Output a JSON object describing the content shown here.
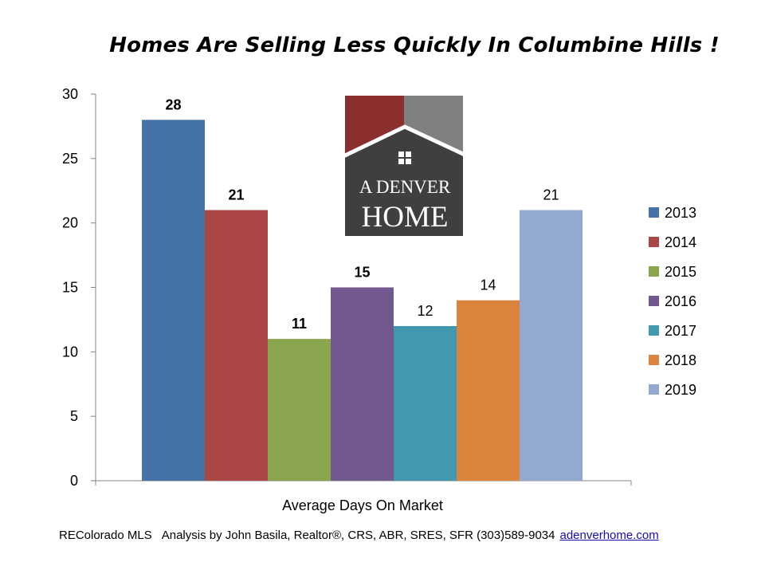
{
  "chart_data": {
    "type": "bar",
    "title": "Homes Are Selling Less Quickly In Columbine Hills !",
    "xlabel": "Average Days On Market",
    "ylabel": "",
    "ylim": [
      0,
      30
    ],
    "yticks": [
      0,
      5,
      10,
      15,
      20,
      25,
      30
    ],
    "categories": [
      "Average Days On Market"
    ],
    "series": [
      {
        "name": "2013",
        "values": [
          28
        ],
        "color": "#4572A7",
        "label_bold": true
      },
      {
        "name": "2014",
        "values": [
          21
        ],
        "color": "#AA4643",
        "label_bold": true
      },
      {
        "name": "2015",
        "values": [
          11
        ],
        "color": "#89A54E",
        "label_bold": true
      },
      {
        "name": "2016",
        "values": [
          15
        ],
        "color": "#71588F",
        "label_bold": true
      },
      {
        "name": "2017",
        "values": [
          12
        ],
        "color": "#4198AF",
        "label_bold": false
      },
      {
        "name": "2018",
        "values": [
          14
        ],
        "color": "#DB843D",
        "label_bold": false
      },
      {
        "name": "2019",
        "values": [
          21
        ],
        "color": "#93A9CF",
        "label_bold": false
      }
    ],
    "legend_position": "right",
    "grid": false
  },
  "logo": {
    "line1": "A DENVER",
    "line2": "HOME",
    "colors": {
      "left": "#8B2E2E",
      "right": "#808080",
      "house": "#3F3F3F",
      "roof_stroke": "#ffffff"
    }
  },
  "footer": {
    "source": "REColorado MLS",
    "credit": "Analysis by John Basila, Realtor®, CRS, ABR, SRES, SFR (303)589-9034",
    "link": "adenverhome.com"
  }
}
